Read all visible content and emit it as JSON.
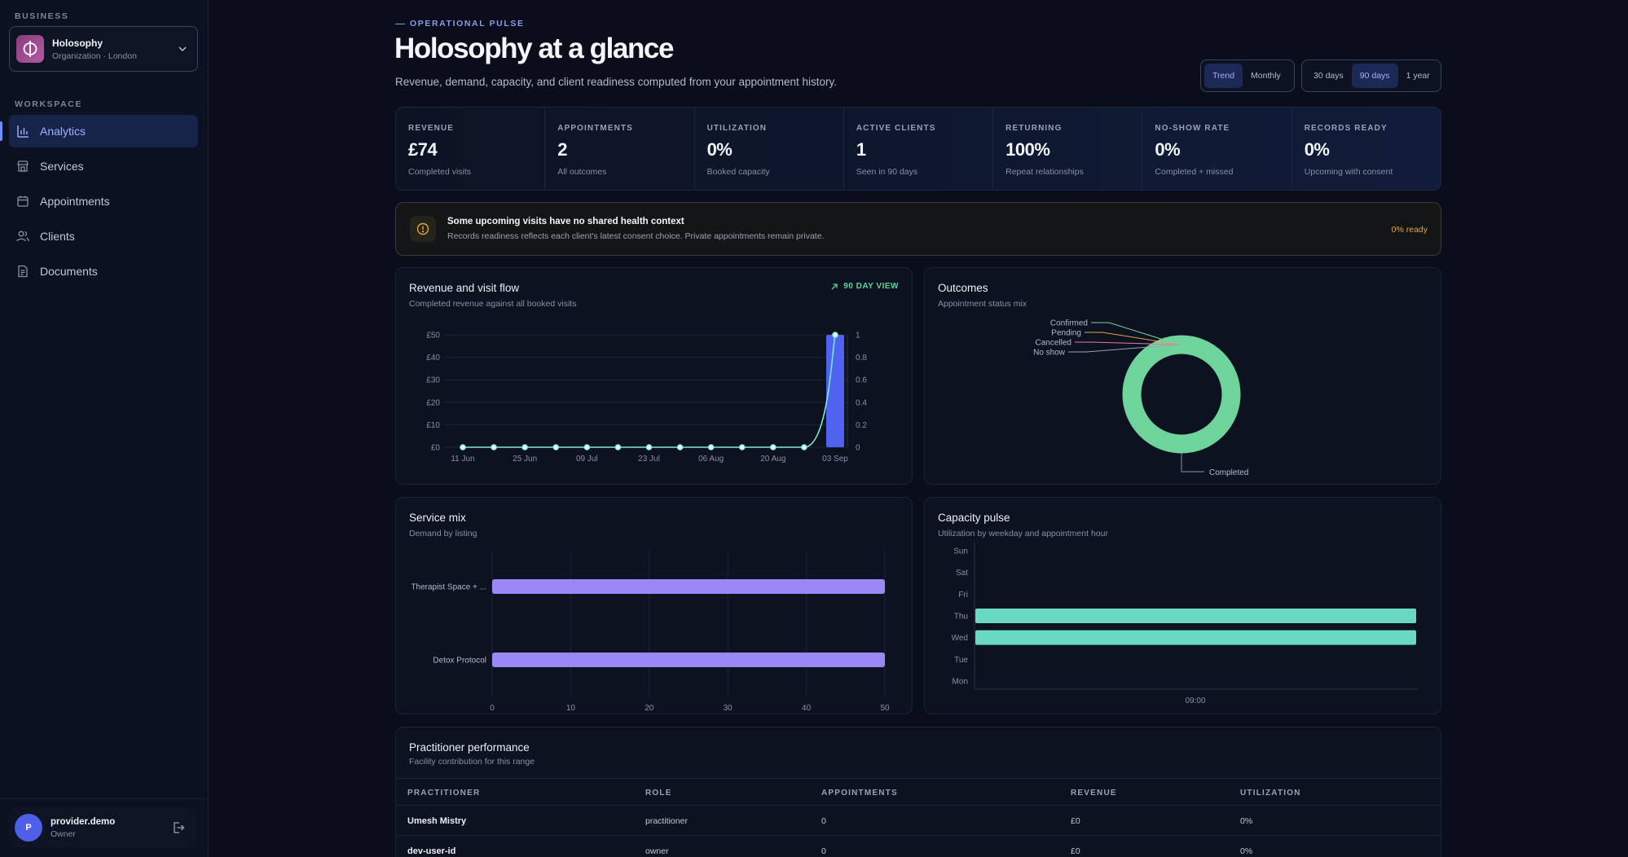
{
  "sidebar": {
    "business_label": "BUSINESS",
    "business_name": "Holosophy",
    "business_sub": "Organization · London",
    "workspace_label": "WORKSPACE",
    "nav": [
      {
        "label": "Analytics",
        "icon": "bar-chart-icon",
        "active": true
      },
      {
        "label": "Services",
        "icon": "store-icon"
      },
      {
        "label": "Appointments",
        "icon": "calendar-icon"
      },
      {
        "label": "Clients",
        "icon": "users-icon"
      },
      {
        "label": "Documents",
        "icon": "document-icon"
      }
    ],
    "user": {
      "initial": "P",
      "name": "provider.demo",
      "role": "Owner"
    }
  },
  "header": {
    "eyebrow": "OPERATIONAL PULSE",
    "title": "Holosophy at a glance",
    "subtitle": "Revenue, demand, capacity, and client readiness computed from your appointment history.",
    "view_toggle": [
      "Trend",
      "Monthly"
    ],
    "view_selected": "Trend",
    "range_toggle": [
      "30 days",
      "90 days",
      "1 year"
    ],
    "range_selected": "90 days"
  },
  "kpis": [
    {
      "label": "REVENUE",
      "value": "£74",
      "note": "Completed visits"
    },
    {
      "label": "APPOINTMENTS",
      "value": "2",
      "note": "All outcomes"
    },
    {
      "label": "UTILIZATION",
      "value": "0%",
      "note": "Booked capacity"
    },
    {
      "label": "ACTIVE CLIENTS",
      "value": "1",
      "note": "Seen in 90 days"
    },
    {
      "label": "RETURNING",
      "value": "100%",
      "note": "Repeat relationships"
    },
    {
      "label": "NO-SHOW RATE",
      "value": "0%",
      "note": "Completed + missed"
    },
    {
      "label": "RECORDS READY",
      "value": "0%",
      "note": "Upcoming with consent"
    }
  ],
  "alert": {
    "title": "Some upcoming visits have no shared health context",
    "body": "Records readiness reflects each client's latest consent choice. Private appointments remain private.",
    "badge": "0% ready"
  },
  "revenue_card": {
    "title": "Revenue and visit flow",
    "subtitle": "Completed revenue against all booked visits",
    "tag": "90 DAY VIEW"
  },
  "outcomes_card": {
    "title": "Outcomes",
    "subtitle": "Appointment status mix"
  },
  "service_card": {
    "title": "Service mix",
    "subtitle": "Demand by listing"
  },
  "capacity_card": {
    "title": "Capacity pulse",
    "subtitle": "Utilization by weekday and appointment hour"
  },
  "colors": {
    "accent": "#6f8cff",
    "bar_blue": "#4f63f0",
    "line": "#7ee8d3",
    "donut": "#6fd49c",
    "purple": "#9b87f5",
    "teal": "#6ad9c2",
    "warning": "#e0a640"
  },
  "chart_data": [
    {
      "type": "bar",
      "title": "Revenue and visit flow",
      "x_ticks": [
        "11 Jun",
        "25 Jun",
        "09 Jul",
        "23 Jul",
        "06 Aug",
        "20 Aug",
        "03 Sep"
      ],
      "left_axis_ticks": [
        "£0",
        "£10",
        "£20",
        "£30",
        "£40",
        "£50"
      ],
      "right_axis_ticks": [
        "0",
        "0.2",
        "0.4",
        "0.6",
        "0.8",
        "1"
      ],
      "ylim_left": [
        0,
        50
      ],
      "ylim_right": [
        0,
        1
      ],
      "series": [
        {
          "kind": "bar",
          "values": [
            0,
            0,
            0,
            0,
            0,
            0,
            0,
            0,
            0,
            0,
            0,
            0,
            50
          ]
        },
        {
          "kind": "line",
          "values": [
            0,
            0,
            0,
            0,
            0,
            0,
            0,
            0,
            0,
            0,
            0,
            0,
            1
          ]
        }
      ]
    },
    {
      "type": "pie",
      "title": "Outcomes",
      "categories": [
        "Confirmed",
        "Pending",
        "Cancelled",
        "No show",
        "Completed"
      ],
      "values": [
        0,
        0,
        0,
        0,
        1
      ]
    },
    {
      "type": "bar",
      "title": "Service mix",
      "categories": [
        "Therapist Space + ...",
        "Detox Protocol"
      ],
      "values": [
        50,
        50
      ],
      "x_ticks": [
        "0",
        "10",
        "20",
        "30",
        "40",
        "50"
      ],
      "xlim": [
        0,
        50
      ]
    },
    {
      "type": "heatmap",
      "title": "Capacity pulse",
      "days": [
        "Sun",
        "Sat",
        "Fri",
        "Thu",
        "Wed",
        "Tue",
        "Mon"
      ],
      "x_ticks": [
        "09:00"
      ],
      "active_days": [
        "Thu",
        "Wed"
      ]
    }
  ],
  "table": {
    "title": "Practitioner performance",
    "subtitle": "Facility contribution for this range",
    "columns": [
      "PRACTITIONER",
      "ROLE",
      "APPOINTMENTS",
      "REVENUE",
      "UTILIZATION"
    ],
    "rows": [
      [
        "Umesh Mistry",
        "practitioner",
        "0",
        "£0",
        "0%"
      ],
      [
        "dev-user-id",
        "owner",
        "0",
        "£0",
        "0%"
      ]
    ]
  }
}
